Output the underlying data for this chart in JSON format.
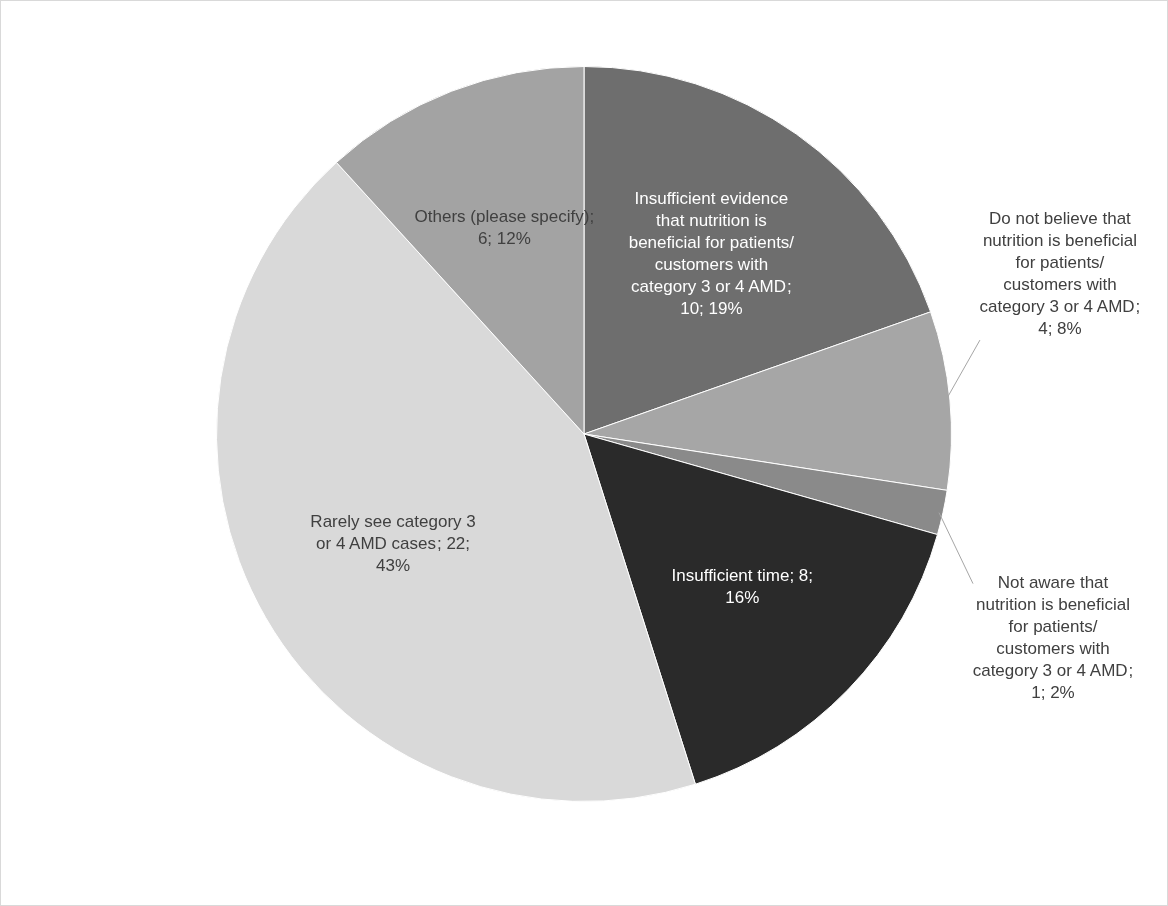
{
  "chart_data": {
    "type": "pie",
    "categories": [
      "Insufficient evidence that nutrition is beneficial for patients/ customers with category 3 or 4 AMD",
      "Do not believe that nutrition is beneficial for patients/ customers with category 3 or 4 AMD",
      "Not aware that nutrition is beneficial for patients/ customers with category 3 or 4 AMD",
      "Insufficient time",
      "Rarely see category 3 or 4 AMD cases",
      "Others (please specify)"
    ],
    "values": [
      10,
      4,
      1,
      8,
      22,
      6
    ],
    "value_labels": [
      "; 10; 19%",
      "; 4; 8%",
      "; 1; 2%",
      "; 8; 16%",
      "; 22; 43%",
      "; 6; 12%"
    ],
    "colors": [
      "#6e6e6e",
      "#a6a6a6",
      "#8a8a8a",
      "#2a2a2a",
      "#d9d9d9",
      "#a3a3a3"
    ],
    "legend": false
  }
}
